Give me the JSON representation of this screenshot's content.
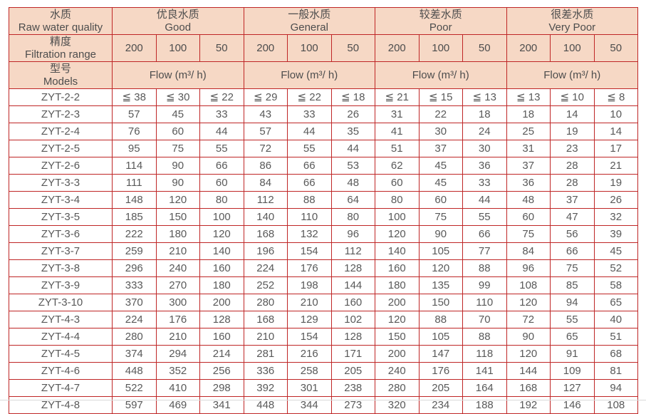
{
  "colors": {
    "border_red": "#bf2626",
    "header_bg": "#f6d8c5",
    "header_text": "#4d4d4d",
    "body_text": "#595959",
    "bottom_rule": "#d9d9d9"
  },
  "table": {
    "header": {
      "raw_water_quality": {
        "zh": "水质",
        "en": "Raw water quality"
      },
      "filtration_range": {
        "zh": "精度",
        "en": "Filtration range"
      },
      "models": {
        "zh": "型号",
        "en": "Models"
      },
      "quality_groups": [
        {
          "zh": "优良水质",
          "en": "Good"
        },
        {
          "zh": "一般水质",
          "en": "General"
        },
        {
          "zh": "较差水质",
          "en": "Poor"
        },
        {
          "zh": "很差水质",
          "en": "Very Poor"
        }
      ],
      "filtration_values": [
        "200",
        "100",
        "50"
      ],
      "flow_label": "Flow (m³/ h)"
    },
    "rows": [
      {
        "model": "ZYT-2-2",
        "values": [
          "≦ 38",
          "≦ 30",
          "≦ 22",
          "≦ 29",
          "≦ 22",
          "≦ 18",
          "≦ 21",
          "≦ 15",
          "≦ 13",
          "≦ 13",
          "≦ 10",
          "≦ 8"
        ]
      },
      {
        "model": "ZYT-2-3",
        "values": [
          "57",
          "45",
          "33",
          "43",
          "33",
          "26",
          "31",
          "22",
          "18",
          "18",
          "14",
          "10"
        ]
      },
      {
        "model": "ZYT-2-4",
        "values": [
          "76",
          "60",
          "44",
          "57",
          "44",
          "35",
          "41",
          "30",
          "24",
          "25",
          "19",
          "14"
        ]
      },
      {
        "model": "ZYT-2-5",
        "values": [
          "95",
          "75",
          "55",
          "72",
          "55",
          "44",
          "51",
          "37",
          "30",
          "31",
          "23",
          "17"
        ]
      },
      {
        "model": "ZYT-2-6",
        "values": [
          "114",
          "90",
          "66",
          "86",
          "66",
          "53",
          "62",
          "45",
          "36",
          "37",
          "28",
          "21"
        ]
      },
      {
        "model": "ZYT-3-3",
        "values": [
          "111",
          "90",
          "60",
          "84",
          "66",
          "48",
          "60",
          "45",
          "33",
          "36",
          "28",
          "19"
        ]
      },
      {
        "model": "ZYT-3-4",
        "values": [
          "148",
          "120",
          "80",
          "112",
          "88",
          "64",
          "80",
          "60",
          "44",
          "48",
          "37",
          "26"
        ]
      },
      {
        "model": "ZYT-3-5",
        "values": [
          "185",
          "150",
          "100",
          "140",
          "110",
          "80",
          "100",
          "75",
          "55",
          "60",
          "47",
          "32"
        ]
      },
      {
        "model": "ZYT-3-6",
        "values": [
          "222",
          "180",
          "120",
          "168",
          "132",
          "96",
          "120",
          "90",
          "66",
          "75",
          "56",
          "39"
        ]
      },
      {
        "model": "ZYT-3-7",
        "values": [
          "259",
          "210",
          "140",
          "196",
          "154",
          "112",
          "140",
          "105",
          "77",
          "84",
          "66",
          "45"
        ]
      },
      {
        "model": "ZYT-3-8",
        "values": [
          "296",
          "240",
          "160",
          "224",
          "176",
          "128",
          "160",
          "120",
          "88",
          "96",
          "75",
          "52"
        ]
      },
      {
        "model": "ZYT-3-9",
        "values": [
          "333",
          "270",
          "180",
          "252",
          "198",
          "144",
          "180",
          "135",
          "99",
          "108",
          "85",
          "58"
        ]
      },
      {
        "model": "ZYT-3-10",
        "values": [
          "370",
          "300",
          "200",
          "280",
          "210",
          "160",
          "200",
          "150",
          "110",
          "120",
          "94",
          "65"
        ]
      },
      {
        "model": "ZYT-4-3",
        "values": [
          "224",
          "176",
          "128",
          "168",
          "129",
          "102",
          "120",
          "88",
          "70",
          "72",
          "55",
          "40"
        ]
      },
      {
        "model": "ZYT-4-4",
        "values": [
          "280",
          "210",
          "160",
          "210",
          "154",
          "128",
          "150",
          "105",
          "88",
          "90",
          "65",
          "51"
        ]
      },
      {
        "model": "ZYT-4-5",
        "values": [
          "374",
          "294",
          "214",
          "281",
          "216",
          "171",
          "200",
          "147",
          "118",
          "120",
          "91",
          "68"
        ]
      },
      {
        "model": "ZYT-4-6",
        "values": [
          "448",
          "352",
          "256",
          "336",
          "258",
          "205",
          "240",
          "176",
          "141",
          "144",
          "109",
          "81"
        ]
      },
      {
        "model": "ZYT-4-7",
        "values": [
          "522",
          "410",
          "298",
          "392",
          "301",
          "238",
          "280",
          "205",
          "164",
          "168",
          "127",
          "94"
        ]
      },
      {
        "model": "ZYT-4-8",
        "values": [
          "597",
          "469",
          "341",
          "448",
          "344",
          "273",
          "320",
          "234",
          "188",
          "192",
          "146",
          "108"
        ]
      }
    ]
  }
}
